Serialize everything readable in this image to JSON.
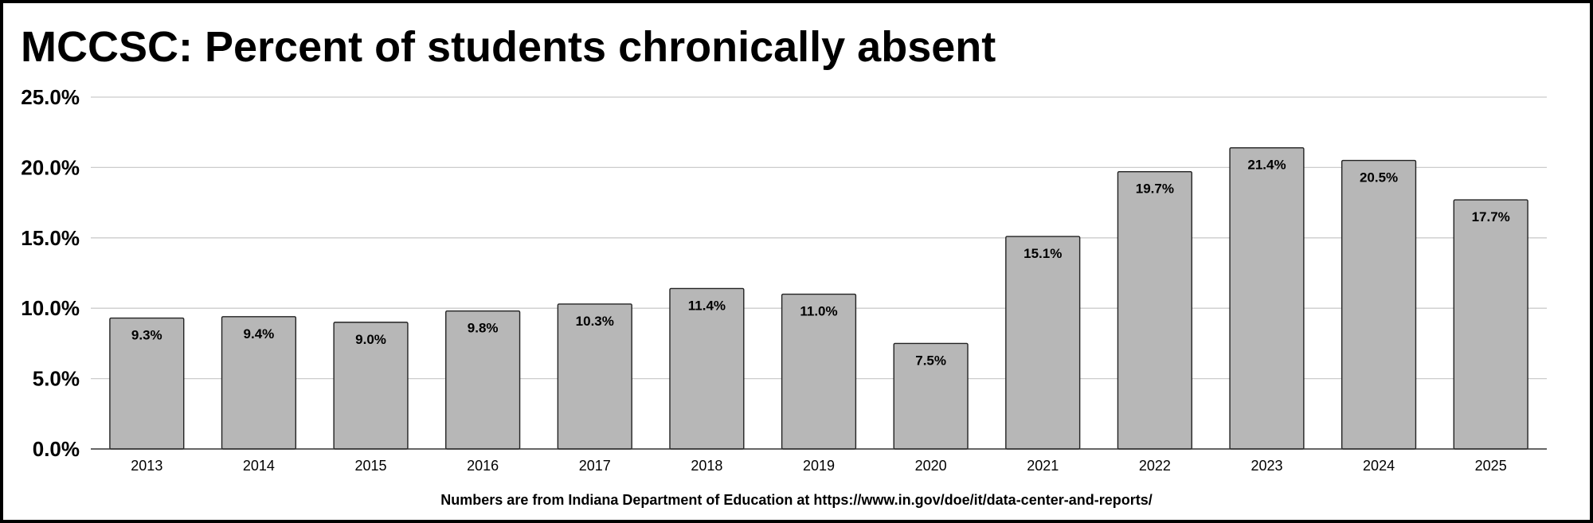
{
  "chart_data": {
    "type": "bar",
    "title": "MCCSC: Percent of students chronically absent",
    "categories": [
      "2013",
      "2014",
      "2015",
      "2016",
      "2017",
      "2018",
      "2019",
      "2020",
      "2021",
      "2022",
      "2023",
      "2024",
      "2025"
    ],
    "values": [
      9.3,
      9.4,
      9.0,
      9.8,
      10.3,
      11.4,
      11.0,
      7.5,
      15.1,
      19.7,
      21.4,
      20.5,
      17.7
    ],
    "data_labels": [
      "9.3%",
      "9.4%",
      "9.0%",
      "9.8%",
      "10.3%",
      "11.4%",
      "11.0%",
      "7.5%",
      "15.1%",
      "19.7%",
      "21.4%",
      "20.5%",
      "17.7%"
    ],
    "xlabel": "",
    "ylabel": "",
    "ylim": [
      0,
      25
    ],
    "yticks": [
      0,
      5,
      10,
      15,
      20,
      25
    ],
    "ytick_labels": [
      "0.0%",
      "5.0%",
      "10.0%",
      "15.0%",
      "20.0%",
      "25.0%"
    ],
    "grid": true,
    "legend": "none",
    "bar_color": "#b7b7b7",
    "footnote": "Numbers are from Indiana Department of Education at https://www.in.gov/doe/it/data-center-and-reports/"
  }
}
